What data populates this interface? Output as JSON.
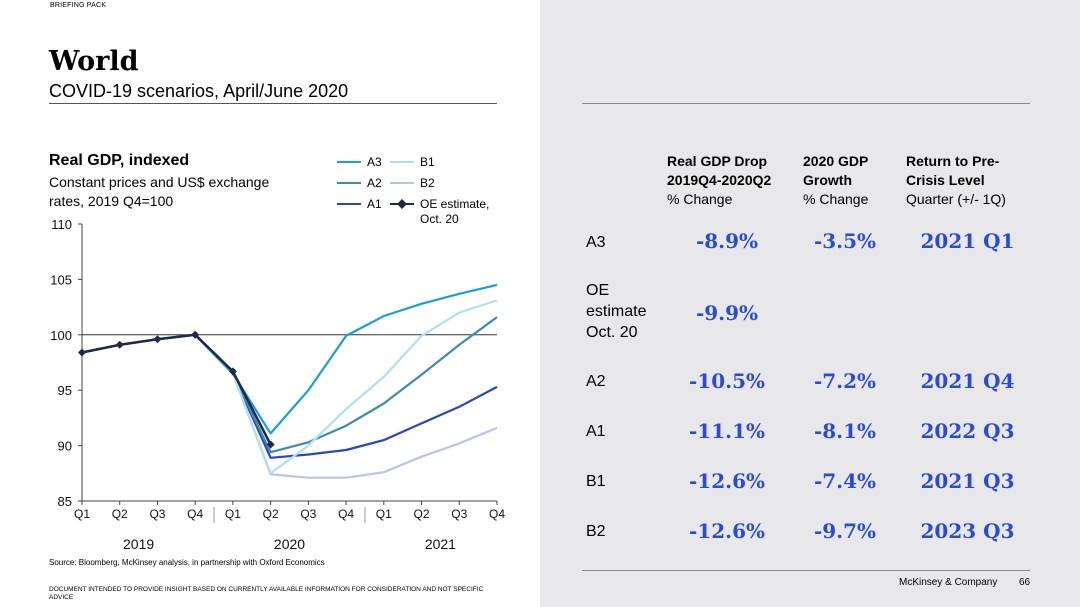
{
  "header": {
    "briefing": "BRIEFING PACK",
    "title": "World",
    "subtitle": "COVID-19 scenarios, April/June 2020"
  },
  "chart": {
    "title": "Real GDP, indexed",
    "subtitle_line1": "Constant prices and US$ exchange",
    "subtitle_line2": "rates, 2019 Q4=100",
    "source": "Source: Bloomberg, McKinsey analysis, in partnership with Oxford Economics"
  },
  "legend": {
    "a3": "A3",
    "a2": "A2",
    "a1": "A1",
    "b1": "B1",
    "b2": "B2",
    "oe_line1": "OE estimate,",
    "oe_line2": "Oct. 20"
  },
  "chart_data": {
    "type": "line",
    "title": "Real GDP, indexed",
    "ylabel": "Constant prices and US$ exchange rates, 2019 Q4=100",
    "ylim": [
      85,
      110
    ],
    "yticks": [
      85,
      90,
      95,
      100,
      105,
      110
    ],
    "categories": [
      "Q1",
      "Q2",
      "Q3",
      "Q4",
      "Q1",
      "Q2",
      "Q3",
      "Q4",
      "Q1",
      "Q2",
      "Q3",
      "Q4"
    ],
    "year_labels": [
      "2019",
      "2020",
      "2021"
    ],
    "reference_line": 100,
    "series": [
      {
        "name": "B2",
        "color": "#b8c4ec",
        "values": [
          98.4,
          99.1,
          99.6,
          100,
          96.5,
          87.4,
          87.1,
          87.1,
          87.6,
          89.0,
          90.2,
          91.6
        ]
      },
      {
        "name": "A1",
        "color": "#2846c8",
        "values": [
          98.4,
          99.1,
          99.6,
          100,
          96.5,
          88.9,
          89.2,
          89.6,
          90.5,
          92.0,
          93.5,
          95.3
        ]
      },
      {
        "name": "A2",
        "color": "#3d8bb0",
        "values": [
          98.4,
          99.1,
          99.6,
          100,
          96.5,
          89.4,
          90.3,
          91.8,
          93.8,
          96.4,
          99.1,
          101.6
        ]
      },
      {
        "name": "B1",
        "color": "#b0e0f0",
        "values": [
          98.4,
          99.1,
          99.6,
          100,
          96.5,
          87.5,
          90.0,
          93.3,
          96.2,
          99.9,
          102.0,
          103.1
        ]
      },
      {
        "name": "A3",
        "color": "#1a9fd8",
        "values": [
          98.4,
          99.1,
          99.6,
          100,
          96.5,
          91.1,
          95.0,
          99.9,
          101.7,
          102.8,
          103.7,
          104.5
        ]
      },
      {
        "name": "OE estimate, Oct. 20",
        "color": "#1f2a44",
        "marker": "diamond",
        "values": [
          98.4,
          99.1,
          99.6,
          100,
          96.7,
          90.1,
          null,
          null,
          null,
          null,
          null,
          null
        ]
      }
    ]
  },
  "table": {
    "headers": [
      {
        "l1": "Real GDP Drop",
        "l2": "2019Q4-2020Q2",
        "l3": "% Change"
      },
      {
        "l1": "2020 GDP",
        "l2": "Growth",
        "l3": "% Change"
      },
      {
        "l1": "Return to Pre-",
        "l2": "Crisis Level",
        "l3": "Quarter (+/- 1Q)"
      }
    ],
    "rows": [
      {
        "label": "A3",
        "drop": "-8.9%",
        "growth": "-3.5%",
        "ret": "2021 Q1"
      },
      {
        "label_l1": "OE",
        "label_l2": "estimate",
        "label_l3": "Oct. 20",
        "drop": "-9.9%"
      },
      {
        "label": "A2",
        "drop": "-10.5%",
        "growth": "-7.2%",
        "ret": "2021 Q4"
      },
      {
        "label": "A1",
        "drop": "-11.1%",
        "growth": "-8.1%",
        "ret": "2022 Q3"
      },
      {
        "label": "B1",
        "drop": "-12.6%",
        "growth": "-7.4%",
        "ret": "2021 Q3"
      },
      {
        "label": "B2",
        "drop": "-12.6%",
        "growth": "-9.7%",
        "ret": "2023 Q3"
      }
    ]
  },
  "footer": {
    "disclaimer": "DOCUMENT INTENDED TO PROVIDE INSIGHT BASED ON CURRENTLY AVAILABLE INFORMATION FOR CONSIDERATION AND NOT SPECIFIC ADVICE",
    "company": "McKinsey & Company",
    "page": "66"
  }
}
